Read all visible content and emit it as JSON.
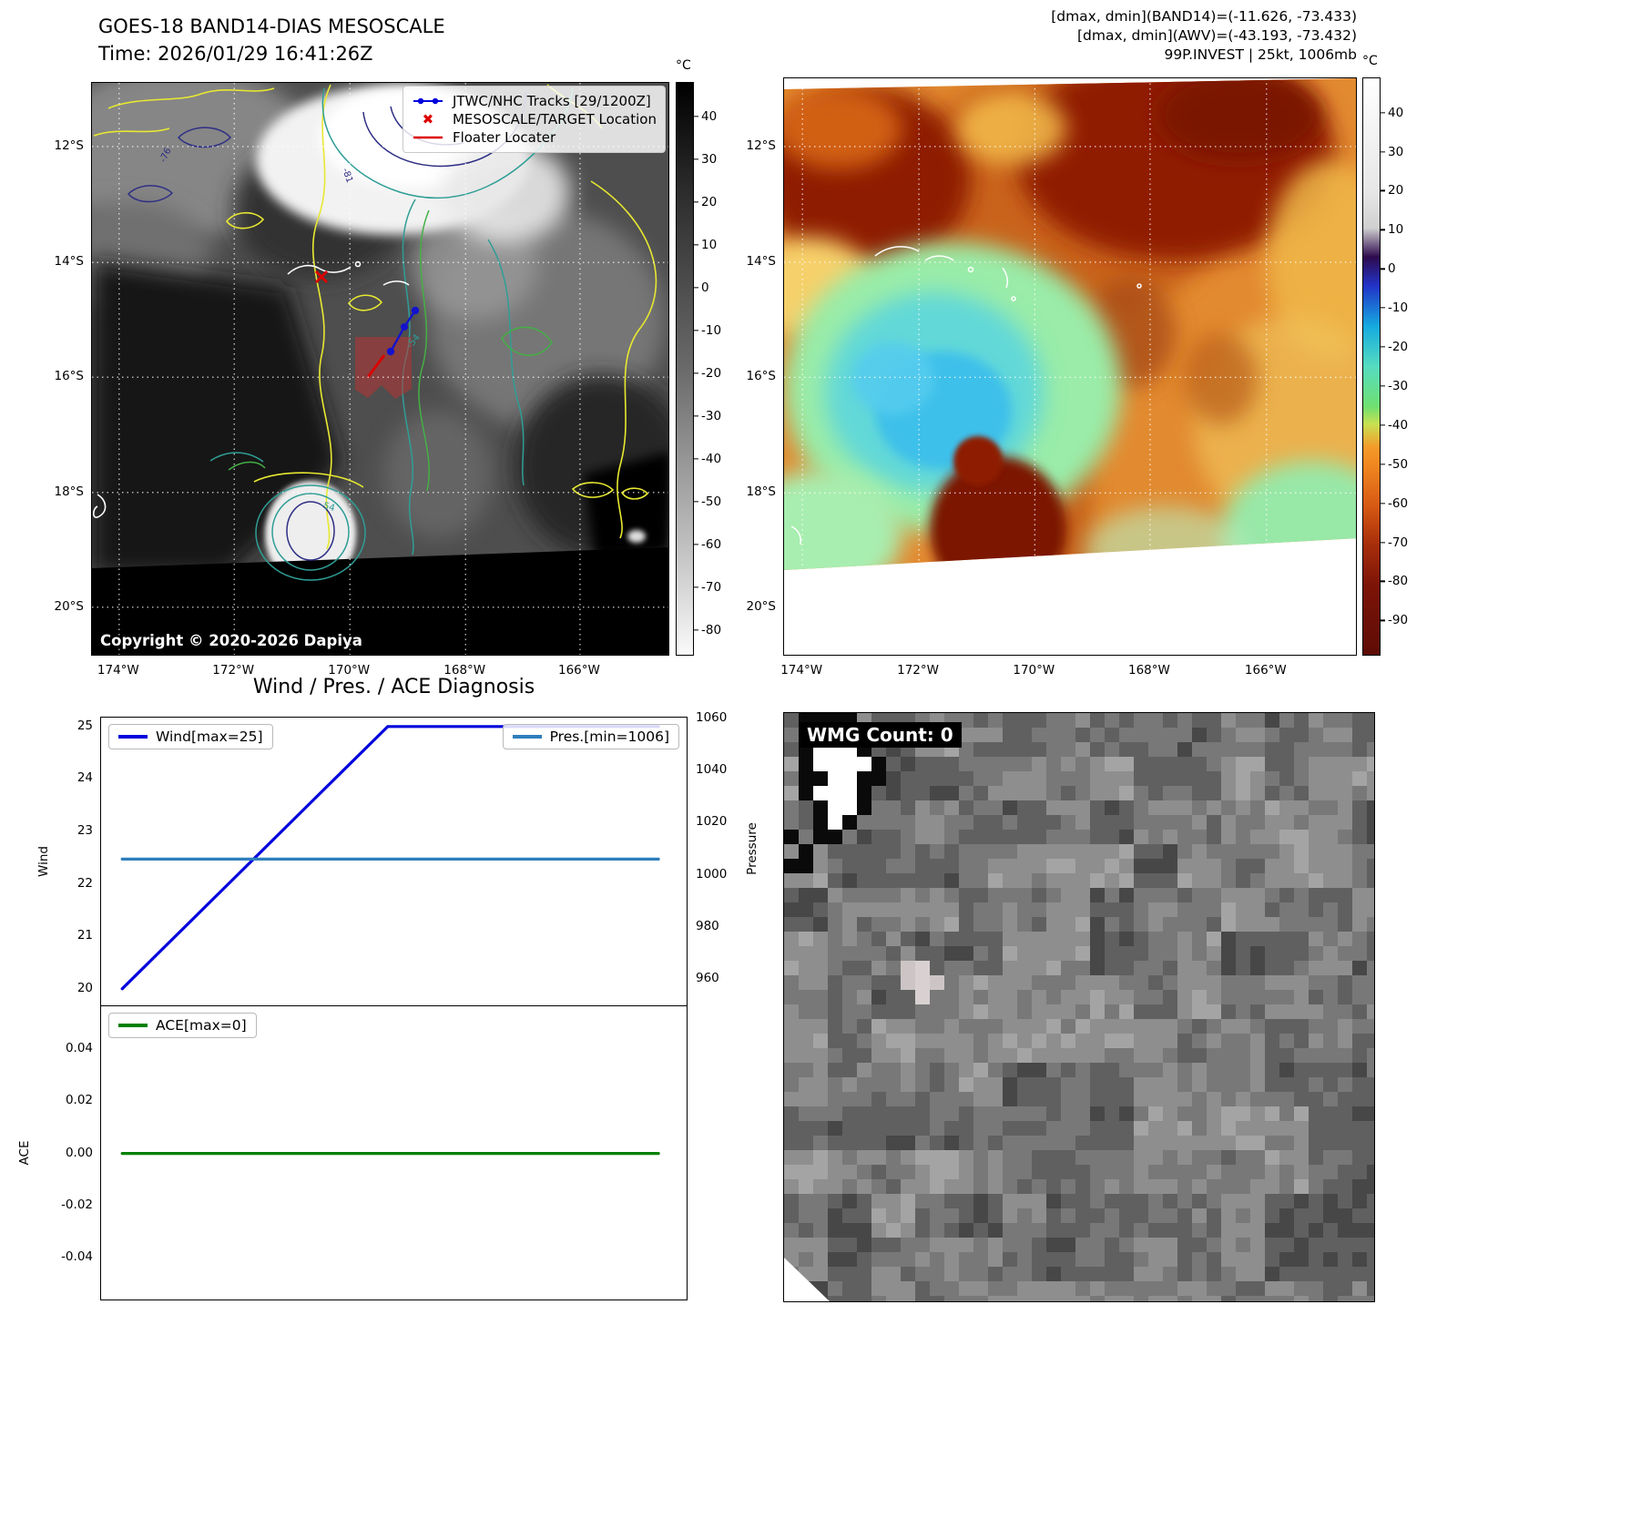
{
  "colors": {
    "track_blue": "#0000dd",
    "marker_red": "#dd0000",
    "wind_line": "#0000dd",
    "pres_line": "#2e7ebc",
    "ace_line": "#008000",
    "contour_yellow": "#e8e832",
    "contour_teal": "#2f9e96",
    "contour_navy": "#2e2e85"
  },
  "band14": {
    "title": "GOES-18 BAND14-DIAS MESOSCALE",
    "time": "Time: 2026/01/29 16:41:26Z",
    "copyright": "Copyright © 2020-2026 Dapiya",
    "colorbar": {
      "unit": "°C",
      "ticks": [
        40,
        30,
        20,
        10,
        0,
        -10,
        -20,
        -30,
        -40,
        -50,
        -60,
        -70,
        -80
      ]
    },
    "legend": [
      {
        "label": "JTWC/NHC Tracks [29/1200Z]",
        "marker": "track-line"
      },
      {
        "label": "MESOSCALE/TARGET Location",
        "marker": "red-x"
      },
      {
        "label": "Floater Locater",
        "marker": "red-line"
      }
    ],
    "lat_ticks": [
      "12°S",
      "14°S",
      "16°S",
      "18°S",
      "20°S"
    ],
    "lon_ticks": [
      "174°W",
      "172°W",
      "170°W",
      "168°W",
      "166°W"
    ],
    "contour_labels": [
      "-76",
      "-81",
      "-54",
      "-54"
    ]
  },
  "awv": {
    "info_lines": [
      "[dmax, dmin](BAND14)=(-11.626, -73.433)",
      "[dmax, dmin](AWV)=(-43.193, -73.432)",
      "99P.INVEST | 25kt, 1006mb"
    ],
    "colorbar": {
      "unit": "°C",
      "ticks": [
        40,
        30,
        20,
        10,
        0,
        -10,
        -20,
        -30,
        -40,
        -50,
        -60,
        -70,
        -80,
        -90
      ]
    },
    "lat_ticks": [
      "12°S",
      "14°S",
      "16°S",
      "18°S",
      "20°S"
    ],
    "lon_ticks": [
      "174°W",
      "172°W",
      "170°W",
      "168°W",
      "166°W"
    ]
  },
  "diagnosis": {
    "title": "Wind / Pres. / ACE Diagnosis"
  },
  "wmg": {
    "label": "WMG Count: 0"
  },
  "chart_data": [
    {
      "type": "line",
      "title": "Wind / Pres. / ACE Diagnosis",
      "series": [
        {
          "name": "Wind[max=25]",
          "yaxis": "left",
          "color": "#0000dd",
          "x_frac": [
            0.036,
            0.488,
            0.949
          ],
          "y": [
            20,
            25,
            25
          ]
        },
        {
          "name": "Pres.[min=1006]",
          "yaxis": "right",
          "color": "#2e7ebc",
          "x_frac": [
            0.036,
            0.949
          ],
          "y": [
            1006,
            1006
          ]
        }
      ],
      "left_axis": {
        "label": "Wind",
        "ticks": [
          25,
          24,
          23,
          22,
          21,
          20
        ],
        "range": [
          19.65,
          25.17
        ]
      },
      "right_axis": {
        "label": "Pressure",
        "ticks": [
          1060,
          1040,
          1020,
          1000,
          980,
          960
        ],
        "range": [
          949.1,
          1060.4
        ]
      },
      "x_axis": {
        "ticks": []
      },
      "legend_position": "upper-left / upper-right"
    },
    {
      "type": "line",
      "series": [
        {
          "name": "ACE[max=0]",
          "yaxis": "left",
          "color": "#008000",
          "x_frac": [
            0.036,
            0.949
          ],
          "y": [
            0,
            0
          ]
        }
      ],
      "left_axis": {
        "label": "ACE",
        "ticks": [
          0.04,
          0.02,
          0,
          -0.02,
          -0.04
        ],
        "tick_labels": [
          "0.04",
          "0.02",
          "0.00",
          "-0.02",
          "-0.04"
        ],
        "range": [
          -0.0568,
          0.0565
        ]
      },
      "x_axis": {
        "ticks": []
      },
      "legend_position": "upper-left"
    }
  ]
}
